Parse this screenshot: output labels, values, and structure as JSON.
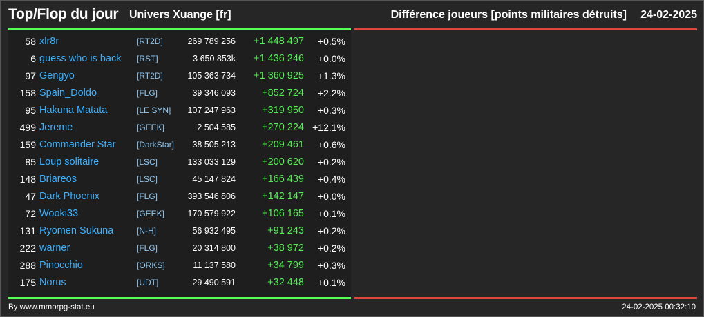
{
  "header": {
    "title": "Top/Flop du jour",
    "universe": "Univers Xuange [fr]",
    "subtitle": "Différence joueurs [points militaires détruits]",
    "date": "24-02-2025"
  },
  "colors": {
    "background": "#262626",
    "panel": "#1e1e1e",
    "top_bar": "#55ff55",
    "flop_bar": "#e0453e",
    "player_link": "#3ab0ff",
    "alliance_link": "#8fc6f0",
    "gain": "#55ee55"
  },
  "top_rows": [
    {
      "rank": "58",
      "player": "xlr8r",
      "alliance": "[RT2D]",
      "points": "269 789 256",
      "diff": "+1 448 497",
      "pct": "+0.5%"
    },
    {
      "rank": "6",
      "player": "guess who is back",
      "alliance": "[RST]",
      "points": "3 650 853k",
      "diff": "+1 436 246",
      "pct": "+0.0%"
    },
    {
      "rank": "97",
      "player": "Gengyo",
      "alliance": "[RT2D]",
      "points": "105 363 734",
      "diff": "+1 360 925",
      "pct": "+1.3%"
    },
    {
      "rank": "158",
      "player": "Spain_Doldo",
      "alliance": "[FLG]",
      "points": "39 346 093",
      "diff": "+852 724",
      "pct": "+2.2%"
    },
    {
      "rank": "95",
      "player": "Hakuna Matata",
      "alliance": "[LE SYN]",
      "points": "107 247 963",
      "diff": "+319 950",
      "pct": "+0.3%"
    },
    {
      "rank": "499",
      "player": "Jereme",
      "alliance": "[GEEK]",
      "points": "2 504 585",
      "diff": "+270 224",
      "pct": "+12.1%"
    },
    {
      "rank": "159",
      "player": "Commander Star",
      "alliance": "[DarkStar]",
      "points": "38 505 213",
      "diff": "+209 461",
      "pct": "+0.6%"
    },
    {
      "rank": "85",
      "player": "Loup solitaire",
      "alliance": "[LSC]",
      "points": "133 033 129",
      "diff": "+200 620",
      "pct": "+0.2%"
    },
    {
      "rank": "148",
      "player": "Briareos",
      "alliance": "[LSC]",
      "points": "45 147 824",
      "diff": "+166 439",
      "pct": "+0.4%"
    },
    {
      "rank": "47",
      "player": "Dark Phoenix",
      "alliance": "[FLG]",
      "points": "393 546 806",
      "diff": "+142 147",
      "pct": "+0.0%"
    },
    {
      "rank": "72",
      "player": "Wooki33",
      "alliance": "[GEEK]",
      "points": "170 579 922",
      "diff": "+106 165",
      "pct": "+0.1%"
    },
    {
      "rank": "131",
      "player": "Ryomen Sukuna",
      "alliance": "[N-H]",
      "points": "56 932 495",
      "diff": "+91 243",
      "pct": "+0.2%"
    },
    {
      "rank": "222",
      "player": "warner",
      "alliance": "[FLG]",
      "points": "20 314 800",
      "diff": "+38 972",
      "pct": "+0.2%"
    },
    {
      "rank": "288",
      "player": "Pinocchio",
      "alliance": "[ORKS]",
      "points": "11 137 580",
      "diff": "+34 799",
      "pct": "+0.3%"
    },
    {
      "rank": "175",
      "player": "Norus",
      "alliance": "[UDT]",
      "points": "29 490 591",
      "diff": "+32 448",
      "pct": "+0.1%"
    }
  ],
  "flop_rows": [],
  "footer": {
    "credit": "By www.mmorpg-stat.eu",
    "timestamp": "24-02-2025 00:32:10"
  }
}
